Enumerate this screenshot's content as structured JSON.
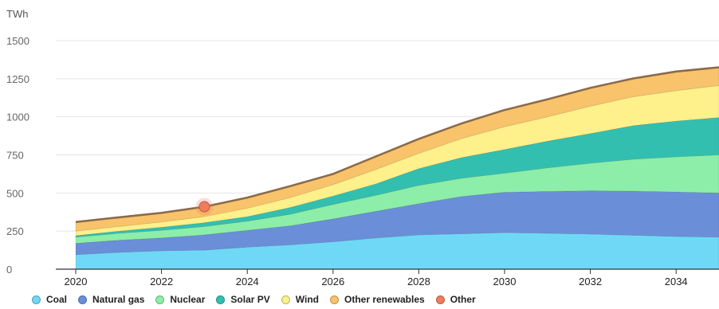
{
  "chart_data": {
    "type": "area",
    "stacked": true,
    "unit_label": "TWh",
    "x": [
      2020,
      2021,
      2022,
      2023,
      2024,
      2025,
      2026,
      2027,
      2028,
      2029,
      2030,
      2031,
      2032,
      2033,
      2034,
      2035
    ],
    "x_ticks": [
      "2020",
      "2022",
      "2024",
      "2026",
      "2028",
      "2030",
      "2032",
      "2034"
    ],
    "y_ticks": [
      "0",
      "250",
      "500",
      "750",
      "1000",
      "1250",
      "1500"
    ],
    "ylim": [
      0,
      1500
    ],
    "grid": true,
    "legend_position": "bottom",
    "series": [
      {
        "name": "Coal",
        "color": "#6fd8f6",
        "values": [
          95,
          110,
          120,
          125,
          145,
          160,
          180,
          205,
          225,
          232,
          240,
          235,
          230,
          222,
          215,
          210
        ]
      },
      {
        "name": "Natural gas",
        "color": "#6a8fd8",
        "values": [
          75,
          80,
          85,
          100,
          110,
          125,
          150,
          175,
          205,
          245,
          265,
          275,
          285,
          290,
          292,
          290
        ]
      },
      {
        "name": "Nuclear",
        "color": "#8ceea8",
        "values": [
          40,
          45,
          50,
          55,
          60,
          75,
          95,
          105,
          120,
          120,
          125,
          155,
          180,
          210,
          230,
          250
        ]
      },
      {
        "name": "Solar PV",
        "color": "#33bfb0",
        "values": [
          10,
          15,
          20,
          25,
          30,
          45,
          55,
          75,
          110,
          135,
          155,
          175,
          195,
          220,
          235,
          245
        ]
      },
      {
        "name": "Wind",
        "color": "#fef08a",
        "values": [
          30,
          30,
          35,
          40,
          55,
          65,
          75,
          95,
          100,
          125,
          150,
          160,
          180,
          190,
          200,
          210
        ]
      },
      {
        "name": "Other renewables",
        "color": "#f8c36a",
        "values": [
          55,
          55,
          55,
          60,
          65,
          70,
          65,
          80,
          90,
          95,
          105,
          110,
          115,
          115,
          120,
          115
        ]
      },
      {
        "name": "Other",
        "color": "#f07c5e",
        "values": [
          5,
          5,
          5,
          5,
          5,
          5,
          5,
          5,
          5,
          5,
          5,
          5,
          5,
          5,
          5,
          5
        ]
      }
    ],
    "highlight_point": {
      "x": 2023,
      "y": 410,
      "series": "Other"
    }
  }
}
